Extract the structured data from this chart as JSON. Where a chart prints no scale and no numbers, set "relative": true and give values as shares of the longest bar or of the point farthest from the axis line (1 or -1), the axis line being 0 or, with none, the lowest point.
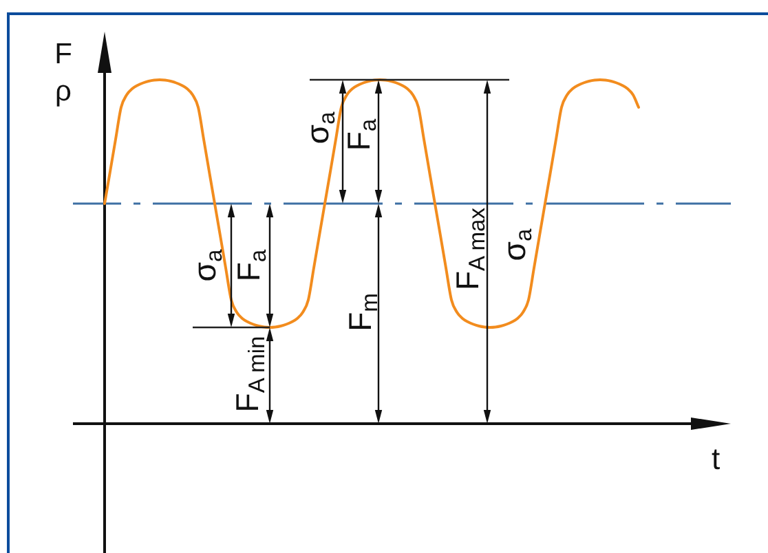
{
  "chart_data": {
    "type": "line",
    "xlabel": "t",
    "ylabel": "F ρ",
    "relative": true,
    "tick_labels": false,
    "color": "#f28c1e",
    "categories": [
      null,
      null,
      null,
      null,
      null,
      null,
      null,
      null,
      null,
      null,
      null,
      null,
      null,
      null,
      null,
      null,
      null,
      null,
      null,
      null,
      null,
      null,
      null,
      null,
      null,
      null,
      null,
      null,
      null,
      null,
      null,
      null,
      null,
      null,
      null,
      null,
      null,
      null,
      null,
      null,
      null,
      null,
      null,
      null,
      null,
      null,
      null,
      null,
      null,
      null,
      null,
      null,
      null,
      null,
      null,
      null,
      null,
      null,
      null,
      null,
      null,
      null,
      null,
      null,
      null,
      null,
      null,
      null,
      null,
      null,
      null,
      null,
      null,
      null,
      null,
      null,
      null,
      null,
      null,
      null,
      null,
      null,
      null,
      null,
      null,
      null,
      null,
      null,
      null,
      null,
      null,
      null,
      null,
      null,
      null,
      null,
      null,
      null
    ],
    "values": [
      0.64,
      0.733,
      0.827,
      0.92,
      0.956,
      0.974,
      0.984,
      0.991,
      0.996,
      0.999,
      1,
      0.999,
      0.996,
      0.991,
      0.984,
      0.974,
      0.956,
      0.92,
      0.827,
      0.733,
      0.64,
      0.547,
      0.453,
      0.36,
      0.324,
      0.306,
      0.296,
      0.289,
      0.284,
      0.281,
      0.28,
      0.281,
      0.284,
      0.289,
      0.296,
      0.306,
      0.324,
      0.36,
      0.453,
      0.547,
      0.64,
      0.733,
      0.827,
      0.92,
      0.956,
      0.974,
      0.984,
      0.991,
      0.996,
      0.999,
      1,
      0.999,
      0.996,
      0.991,
      0.984,
      0.974,
      0.956,
      0.92,
      0.827,
      0.733,
      0.64,
      0.547,
      0.453,
      0.36,
      0.324,
      0.306,
      0.296,
      0.289,
      0.284,
      0.281,
      0.28,
      0.281,
      0.284,
      0.289,
      0.296,
      0.306,
      0.324,
      0.36,
      0.453,
      0.547,
      0.64,
      0.733,
      0.827,
      0.92,
      0.956,
      0.974,
      0.984,
      0.991,
      0.996,
      0.999,
      1,
      0.999,
      0.996,
      0.991,
      0.984,
      0.974,
      0.956,
      0.92
    ],
    "ref_lines": [
      {
        "axis": "y",
        "value": 0.64,
        "color": "#3d6fa3",
        "line_style": "dashed"
      }
    ],
    "annotations": [
      "σ$_{a}$",
      "F$_{a}$",
      "F$_{A min}$",
      "σ$_{a}$",
      "F$_{a}$",
      "F$_{m}$",
      "F$_{A max}$",
      "σ$_{a}$"
    ]
  }
}
